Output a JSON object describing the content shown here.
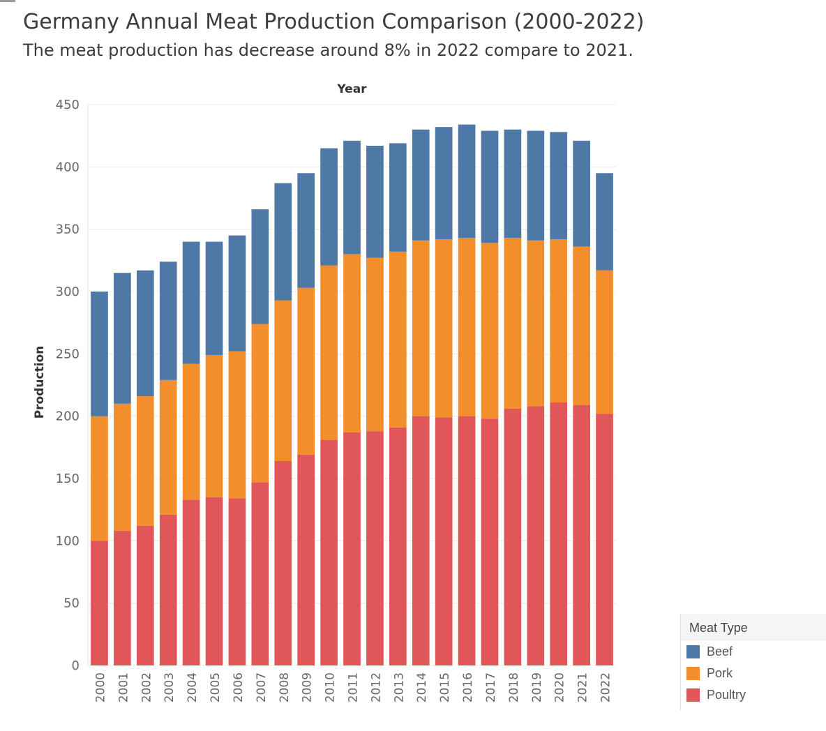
{
  "title": "Germany Annual Meat Production Comparison (2000-2022)",
  "subtitle": "The meat production has decrease around 8% in 2022 compare to 2021.",
  "chart_data": {
    "type": "bar",
    "stacked": true,
    "title": "Germany Annual Meat Production Comparison (2000-2022)",
    "subtitle": "The meat production has decrease around 8% in 2022 compare to 2021.",
    "xlabel": "Year",
    "ylabel": "Production",
    "ylim": [
      0,
      450
    ],
    "yticks": [
      0,
      50,
      100,
      150,
      200,
      250,
      300,
      350,
      400,
      450
    ],
    "grid": true,
    "legend_position": "bottom-right",
    "legend_title": "Meat Type",
    "categories": [
      "2000",
      "2001",
      "2002",
      "2003",
      "2004",
      "2005",
      "2006",
      "2007",
      "2008",
      "2009",
      "2010",
      "2011",
      "2012",
      "2013",
      "2014",
      "2015",
      "2016",
      "2017",
      "2018",
      "2019",
      "2020",
      "2021",
      "2022"
    ],
    "series": [
      {
        "name": "Poultry",
        "color": "#e15759",
        "values": [
          100,
          108,
          112,
          121,
          133,
          135,
          134,
          147,
          164,
          169,
          181,
          187,
          188,
          191,
          200,
          199,
          200,
          198,
          206,
          208,
          211,
          209,
          202
        ]
      },
      {
        "name": "Pork",
        "color": "#f28e2b",
        "values": [
          100,
          102,
          104,
          108,
          109,
          114,
          118,
          127,
          129,
          134,
          140,
          143,
          139,
          141,
          141,
          143,
          143,
          141,
          137,
          133,
          131,
          127,
          115
        ]
      },
      {
        "name": "Beef",
        "color": "#4e79a7",
        "values": [
          100,
          105,
          101,
          95,
          98,
          91,
          93,
          92,
          94,
          92,
          94,
          91,
          90,
          87,
          89,
          90,
          91,
          90,
          87,
          88,
          86,
          85,
          78
        ]
      }
    ]
  },
  "legend": {
    "title": "Meat Type",
    "items": [
      {
        "label": "Beef",
        "color": "#4e79a7"
      },
      {
        "label": "Pork",
        "color": "#f28e2b"
      },
      {
        "label": "Poultry",
        "color": "#e15759"
      }
    ]
  }
}
